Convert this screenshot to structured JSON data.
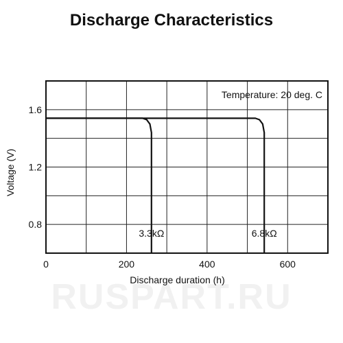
{
  "watermark": "RUSPART.RU",
  "chart_data": {
    "type": "line",
    "title": "Discharge Characteristics",
    "xlabel": "Discharge duration (h)",
    "ylabel": "Voltage (V)",
    "xlim": [
      0,
      700
    ],
    "ylim": [
      0.6,
      1.8
    ],
    "x_ticks": [
      0,
      200,
      400,
      600
    ],
    "y_ticks": [
      0.8,
      1.2,
      1.6
    ],
    "grid": true,
    "annotation": "Temperature: 20 deg. C",
    "series": [
      {
        "name": "3.3kΩ",
        "points": [
          [
            0,
            1.54
          ],
          [
            240,
            1.54
          ],
          [
            250,
            1.53
          ],
          [
            258,
            1.5
          ],
          [
            262,
            1.44
          ],
          [
            262,
            0.6
          ]
        ]
      },
      {
        "name": "6.8kΩ",
        "points": [
          [
            0,
            1.54
          ],
          [
            520,
            1.54
          ],
          [
            530,
            1.53
          ],
          [
            538,
            1.5
          ],
          [
            542,
            1.44
          ],
          [
            542,
            0.6
          ]
        ]
      }
    ],
    "colors": {
      "line": "#111111",
      "grid": "#222222"
    }
  }
}
